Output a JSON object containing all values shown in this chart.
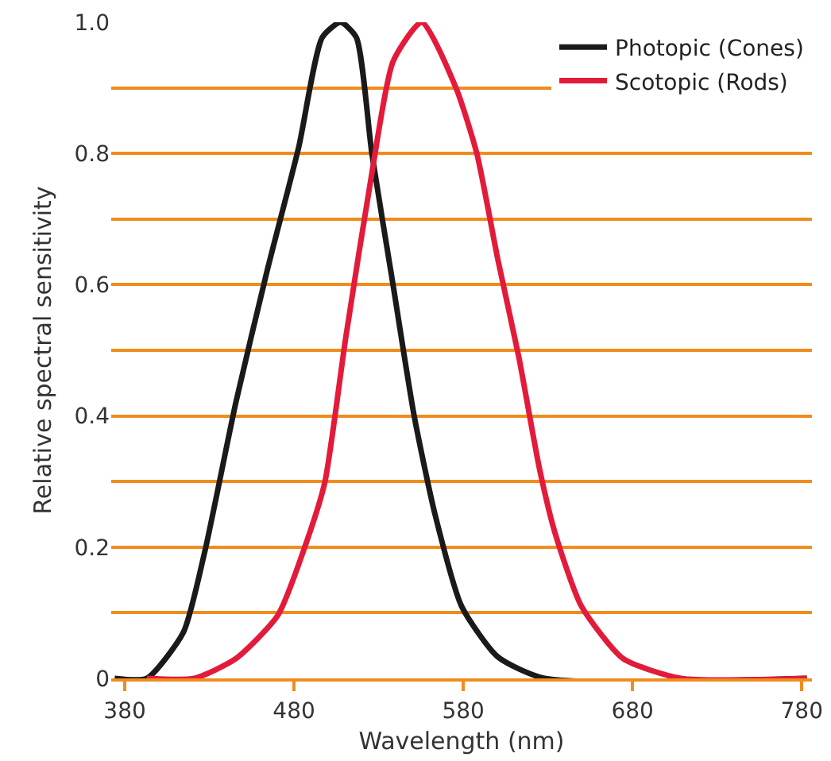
{
  "chart_data": {
    "type": "line",
    "xlabel": "Wavelength (nm)",
    "ylabel": "Relative spectral sensitivity",
    "xlim": [
      372,
      786
    ],
    "xticks": [
      380,
      480,
      580,
      680,
      780
    ],
    "ylim": [
      0,
      1
    ],
    "yticks": [
      0,
      {
        "value": 0.1,
        "label": null
      },
      0.2,
      {
        "value": 0.3,
        "label": null
      },
      0.4,
      {
        "value": 0.5,
        "label": null
      },
      0.6,
      {
        "value": 0.7,
        "label": null
      },
      0.8,
      {
        "value": 0.9,
        "label": null
      },
      {
        "value": 1.0,
        "label": "1.0"
      }
    ],
    "grid": "y",
    "legend": "top right",
    "marker": "none",
    "line_style": "solid",
    "series": [
      {
        "name": "Photopic (Cones)",
        "color": "#1a1a1a",
        "x": [
          374,
          393,
          414.6,
          427,
          445.6,
          464,
          482.8,
          496.7,
          507.5,
          516.8,
          526,
          538.5,
          551,
          563.3,
          579,
          600.3,
          628,
          783
        ],
        "values": [
          0,
          0,
          0.07,
          0.19,
          0.42,
          0.62,
          0.81,
          0.977,
          1.0,
          0.977,
          0.8,
          0.6,
          0.4,
          0.25,
          0.11,
          0.033,
          0,
          0
        ]
      },
      {
        "name": "Scotopic (Rods)",
        "color": "#e31b3b",
        "x": [
          393,
          421,
          445.6,
          470.4,
          489,
          498.3,
          510.6,
          526,
          538.5,
          555.5,
          575.7,
          588,
          600.3,
          612.8,
          625,
          634.4,
          649.8,
          674.5,
          708.7,
          783
        ],
        "values": [
          0,
          0,
          0.03,
          0.096,
          0.22,
          0.3,
          0.52,
          0.77,
          0.94,
          1.0,
          0.9,
          0.8,
          0.64,
          0.49,
          0.32,
          0.22,
          0.11,
          0.03,
          0,
          0
        ]
      }
    ]
  }
}
